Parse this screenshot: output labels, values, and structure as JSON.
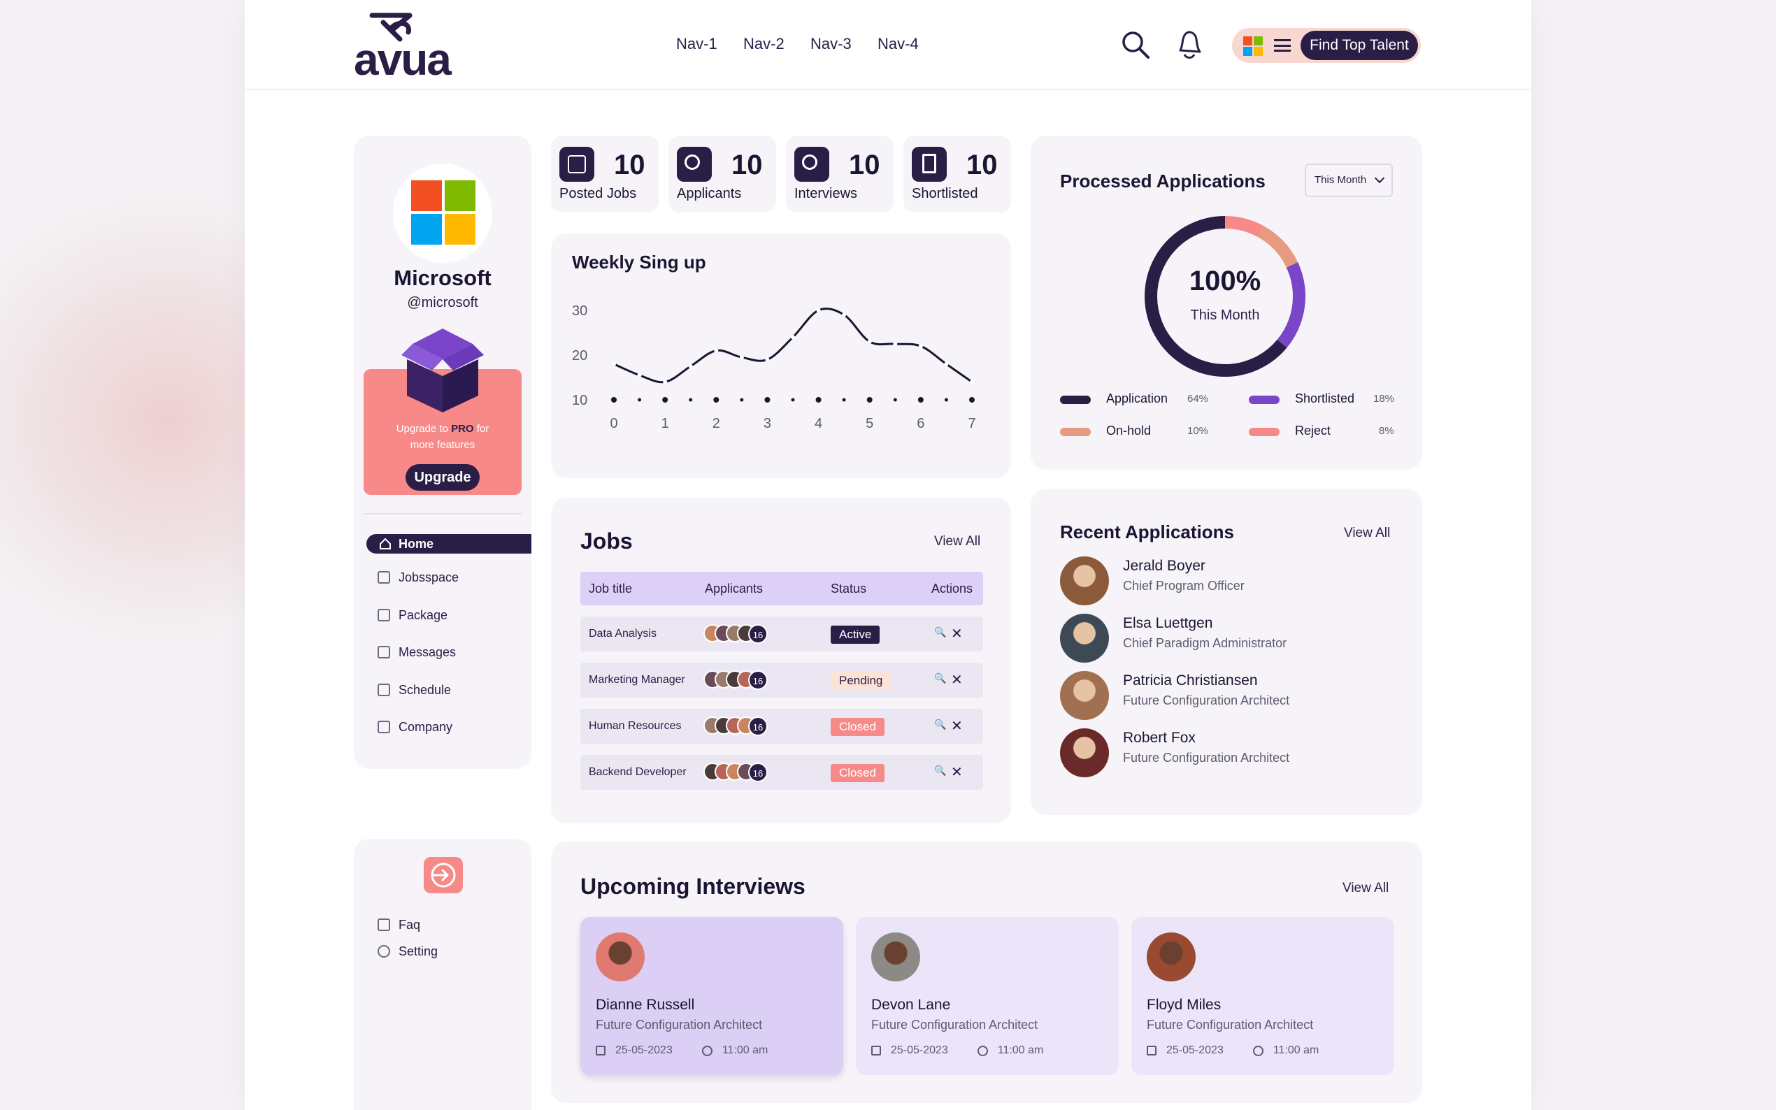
{
  "header": {
    "logo": "avua",
    "nav": [
      "Nav-1",
      "Nav-2",
      "Nav-3",
      "Nav-4"
    ],
    "cta": "Find Top Talent"
  },
  "profile": {
    "name": "Microsoft",
    "handle": "@microsoft",
    "promo_prefix": "Upgrade to ",
    "promo_pro": "PRO",
    "promo_suffix": " for more features",
    "upgrade_label": "Upgrade"
  },
  "sidebar": {
    "items": [
      {
        "label": "Home",
        "icon": "home-icon",
        "active": true
      },
      {
        "label": "Jobsspace",
        "icon": "briefcase-icon"
      },
      {
        "label": "Package",
        "icon": "package-icon"
      },
      {
        "label": "Messages",
        "icon": "message-icon"
      },
      {
        "label": "Schedule",
        "icon": "calendar-icon"
      },
      {
        "label": "Company",
        "icon": "building-icon"
      }
    ],
    "bottom": [
      {
        "label": "Faq",
        "icon": "faq-icon"
      },
      {
        "label": "Setting",
        "icon": "gear-icon"
      }
    ]
  },
  "stats": [
    {
      "value": "10",
      "label": "Posted Jobs",
      "icon": "posted-jobs-icon"
    },
    {
      "value": "10",
      "label": "Applicants",
      "icon": "applicants-icon"
    },
    {
      "value": "10",
      "label": "Interviews",
      "icon": "interviews-icon"
    },
    {
      "value": "10",
      "label": "Shortlisted",
      "icon": "shortlisted-icon"
    }
  ],
  "weekly": {
    "title": "Weekly Sing up"
  },
  "chart_data": {
    "type": "line",
    "title": "Weekly Sing up",
    "x": [
      0,
      0.5,
      1,
      1.5,
      2,
      2.5,
      3,
      3.5,
      4,
      4.5,
      5,
      5.5,
      6,
      6.5,
      7
    ],
    "y": [
      18,
      15.5,
      14,
      17.5,
      21,
      19.5,
      19,
      24,
      30,
      29,
      23,
      22.5,
      22,
      18,
      14
    ],
    "x_ticks": [
      "0",
      "1",
      "2",
      "3",
      "4",
      "5",
      "6",
      "7"
    ],
    "y_ticks": [
      "10",
      "20",
      "30"
    ],
    "xlim": [
      0,
      7
    ],
    "ylim": [
      10,
      30
    ]
  },
  "processed": {
    "title": "Processed Applications",
    "filter": "This Month",
    "center_value": "100%",
    "center_label": "This Month",
    "legend": [
      {
        "label": "Application",
        "pct": "64%",
        "color": "#2a1d46"
      },
      {
        "label": "Shortlisted",
        "pct": "18%",
        "color": "#7a45c9"
      },
      {
        "label": "On-hold",
        "pct": "10%",
        "color": "#e69a80"
      },
      {
        "label": "Reject",
        "pct": "8%",
        "color": "#f78a88"
      }
    ]
  },
  "jobs": {
    "title": "Jobs",
    "view_all": "View All",
    "columns": [
      "Job title",
      "Applicants",
      "Status",
      "Actions"
    ],
    "rows": [
      {
        "title": "Data Analysis",
        "count": "16",
        "status": "Active",
        "kind": "active"
      },
      {
        "title": "Marketing Manager",
        "count": "16",
        "status": "Pending",
        "kind": "pending"
      },
      {
        "title": "Human Resources",
        "count": "16",
        "status": "Closed",
        "kind": "closed"
      },
      {
        "title": "Backend Developer",
        "count": "16",
        "status": "Closed",
        "kind": "closed"
      }
    ]
  },
  "recent": {
    "title": "Recent Applications",
    "view_all": "View All",
    "items": [
      {
        "name": "Jerald Boyer",
        "role": "Chief Program Officer",
        "color": "#8a5a3a"
      },
      {
        "name": "Elsa Luettgen",
        "role": "Chief Paradigm Administrator",
        "color": "#3d4a55"
      },
      {
        "name": "Patricia Christiansen",
        "role": "Future Configuration Architect",
        "color": "#a07050"
      },
      {
        "name": "Robert Fox",
        "role": "Future Configuration Architect",
        "color": "#6b2a2a"
      }
    ]
  },
  "interviews": {
    "title": "Upcoming Interviews",
    "view_all": "View All",
    "items": [
      {
        "name": "Dianne Russell",
        "role": "Future Configuration Architect",
        "date": "25-05-2023",
        "time": "11:00 am",
        "color": "#e07a70"
      },
      {
        "name": "Devon Lane",
        "role": "Future Configuration Architect",
        "date": "25-05-2023",
        "time": "11:00 am",
        "color": "#8d8a85"
      },
      {
        "name": "Floyd Miles",
        "role": "Future Configuration Architect",
        "date": "25-05-2023",
        "time": "11:00 am",
        "color": "#9a4a30"
      }
    ]
  }
}
